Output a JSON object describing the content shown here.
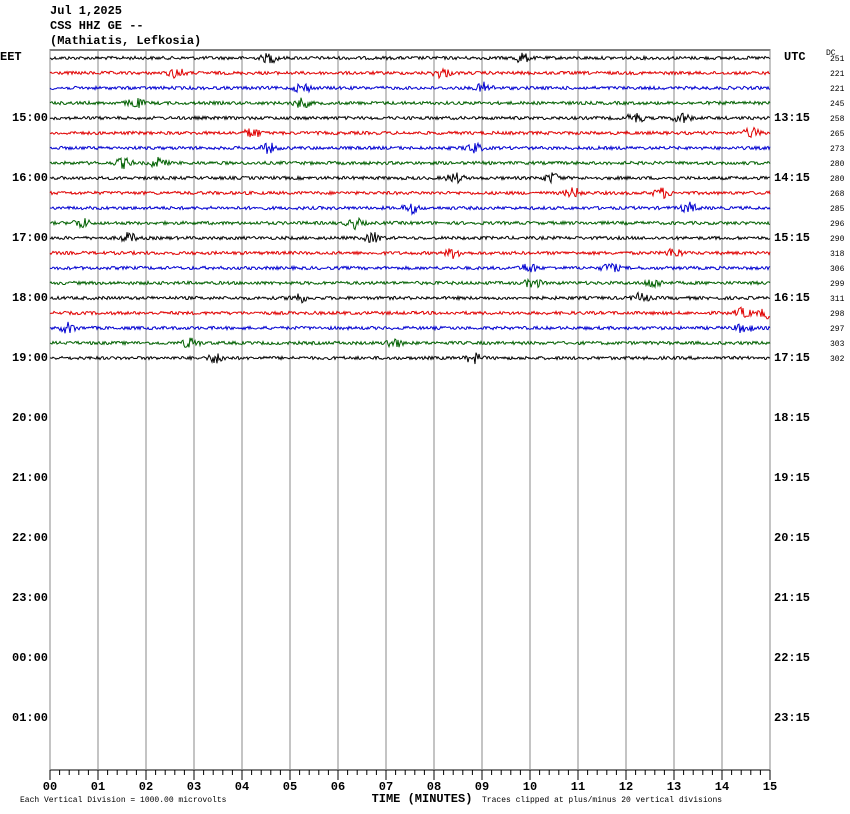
{
  "chart_data": {
    "type": "helicorder",
    "header": [
      "Jul 1,2025",
      "CSS HHZ GE --",
      "(Mathiatis, Lefkosia)"
    ],
    "left_zone": "EET",
    "right_zone": "UTC",
    "dc_label": "DC",
    "left_times": [
      "15:00",
      "16:00",
      "17:00",
      "18:00",
      "19:00",
      "20:00",
      "21:00",
      "22:00",
      "23:00",
      "00:00",
      "01:00"
    ],
    "right_times": [
      "13:15",
      "14:15",
      "15:15",
      "16:15",
      "17:15",
      "18:15",
      "19:15",
      "20:15",
      "21:15",
      "22:15",
      "23:15"
    ],
    "xlabel": "TIME (MINUTES)",
    "xlim": [
      0,
      15
    ],
    "xticks": [
      {
        "value": 0,
        "label": "00"
      },
      {
        "value": 1,
        "label": "01"
      },
      {
        "value": 2,
        "label": "02"
      },
      {
        "value": 3,
        "label": "03"
      },
      {
        "value": 4,
        "label": "04"
      },
      {
        "value": 5,
        "label": "05"
      },
      {
        "value": 6,
        "label": "06"
      },
      {
        "value": 7,
        "label": "07"
      },
      {
        "value": 8,
        "label": "08"
      },
      {
        "value": 9,
        "label": "09"
      },
      {
        "value": 10,
        "label": "10"
      },
      {
        "value": 11,
        "label": "11"
      },
      {
        "value": 12,
        "label": "12"
      },
      {
        "value": 13,
        "label": "13"
      },
      {
        "value": 14,
        "label": "14"
      },
      {
        "value": 15,
        "label": "15"
      }
    ],
    "footer_left": "Each Vertical Division = 1000.00 microvolts",
    "footer_right": "Traces clipped at plus/minus 20 vertical divisions",
    "trace_colors": [
      "#000000",
      "#e00000",
      "#0000d0",
      "#006000"
    ],
    "dc_values": [
      251,
      221,
      221,
      245,
      258,
      265,
      273,
      280,
      280,
      268,
      285,
      296,
      290,
      318,
      306,
      299,
      311,
      298,
      297,
      303,
      302
    ]
  }
}
